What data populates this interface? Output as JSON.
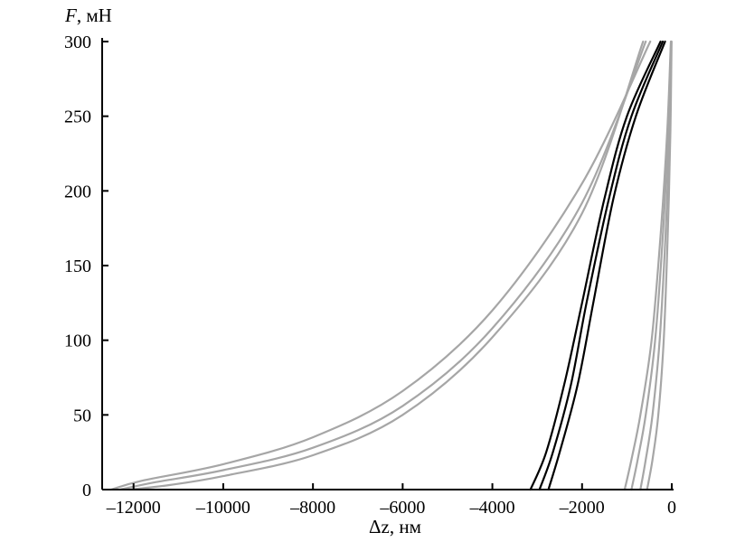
{
  "chart_data": {
    "type": "line",
    "xlabel_symbol": "Δz",
    "xlabel_unit": ", нм",
    "ylabel_symbol": "F",
    "ylabel_unit": ", мН",
    "xlim": [
      -12700,
      0
    ],
    "ylim": [
      0,
      300
    ],
    "x_ticks": [
      -12000,
      -10000,
      -8000,
      -6000,
      -4000,
      -2000,
      0
    ],
    "x_tick_labels": [
      "–12000",
      "–10000",
      "–8000",
      "–6000",
      "–4000",
      "–2000",
      "0"
    ],
    "y_ticks": [
      0,
      50,
      100,
      150,
      200,
      250,
      300
    ],
    "y_tick_labels": [
      "0",
      "50",
      "100",
      "150",
      "200",
      "250",
      "300"
    ],
    "grid": false,
    "colors": {
      "gray": "#a6a6a6",
      "black": "#000000"
    },
    "series": [
      {
        "color": "gray",
        "points": [
          [
            -12500,
            0
          ],
          [
            -11800,
            6
          ],
          [
            -10000,
            17
          ],
          [
            -8000,
            35
          ],
          [
            -6000,
            66
          ],
          [
            -4000,
            120
          ],
          [
            -2000,
            205
          ],
          [
            -480,
            300
          ]
        ]
      },
      {
        "color": "gray",
        "points": [
          [
            -12300,
            0
          ],
          [
            -11500,
            5
          ],
          [
            -10000,
            13
          ],
          [
            -8000,
            28
          ],
          [
            -6000,
            56
          ],
          [
            -4000,
            108
          ],
          [
            -2000,
            192
          ],
          [
            -580,
            300
          ]
        ]
      },
      {
        "color": "gray",
        "points": [
          [
            -12100,
            0
          ],
          [
            -11200,
            3
          ],
          [
            -10000,
            9
          ],
          [
            -8000,
            23
          ],
          [
            -6000,
            50
          ],
          [
            -4000,
            102
          ],
          [
            -2000,
            185
          ],
          [
            -640,
            300
          ]
        ]
      },
      {
        "color": "black",
        "points": [
          [
            -3150,
            0
          ],
          [
            -2800,
            25
          ],
          [
            -2400,
            70
          ],
          [
            -2000,
            125
          ],
          [
            -1500,
            195
          ],
          [
            -1000,
            250
          ],
          [
            -250,
            300
          ]
        ]
      },
      {
        "color": "black",
        "points": [
          [
            -2950,
            0
          ],
          [
            -2650,
            25
          ],
          [
            -2250,
            70
          ],
          [
            -1900,
            125
          ],
          [
            -1400,
            195
          ],
          [
            -900,
            250
          ],
          [
            -200,
            300
          ]
        ]
      },
      {
        "color": "black",
        "points": [
          [
            -2750,
            0
          ],
          [
            -2500,
            25
          ],
          [
            -2100,
            70
          ],
          [
            -1750,
            125
          ],
          [
            -1300,
            195
          ],
          [
            -800,
            250
          ],
          [
            -150,
            300
          ]
        ]
      },
      {
        "color": "gray",
        "points": [
          [
            -1050,
            0
          ],
          [
            -900,
            20
          ],
          [
            -700,
            50
          ],
          [
            -450,
            100
          ],
          [
            -250,
            170
          ],
          [
            -100,
            240
          ],
          [
            -20,
            300
          ]
        ]
      },
      {
        "color": "gray",
        "points": [
          [
            -900,
            0
          ],
          [
            -760,
            20
          ],
          [
            -580,
            50
          ],
          [
            -370,
            100
          ],
          [
            -200,
            170
          ],
          [
            -80,
            240
          ],
          [
            -15,
            300
          ]
        ]
      },
      {
        "color": "gray",
        "points": [
          [
            -700,
            0
          ],
          [
            -580,
            20
          ],
          [
            -430,
            50
          ],
          [
            -270,
            100
          ],
          [
            -140,
            170
          ],
          [
            -50,
            240
          ],
          [
            -10,
            300
          ]
        ]
      },
      {
        "color": "gray",
        "points": [
          [
            -550,
            0
          ],
          [
            -430,
            20
          ],
          [
            -300,
            50
          ],
          [
            -180,
            100
          ],
          [
            -90,
            170
          ],
          [
            -30,
            240
          ],
          [
            -5,
            300
          ]
        ]
      }
    ]
  }
}
